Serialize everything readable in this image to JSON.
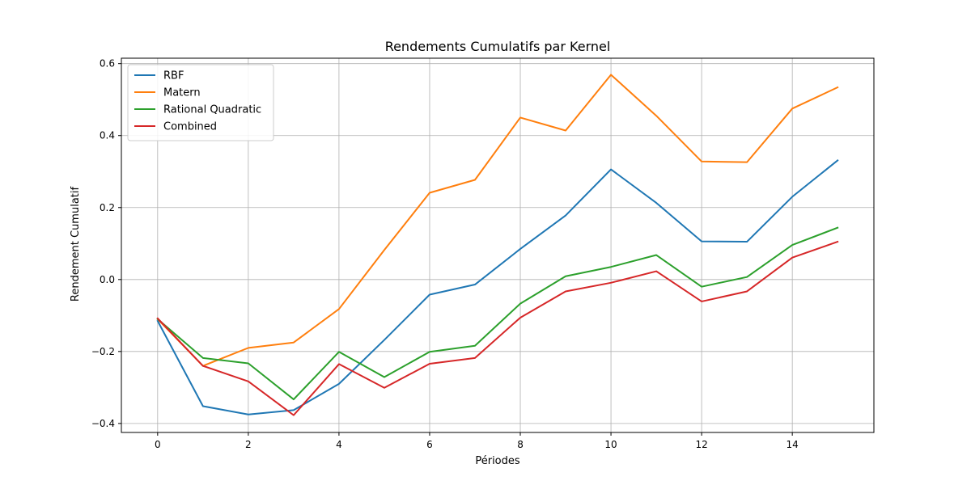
{
  "chart_data": {
    "type": "line",
    "title": "Rendements Cumulatifs par Kernel",
    "xlabel": "Périodes",
    "ylabel": "Rendement Cumulatif",
    "x": [
      0,
      1,
      2,
      3,
      4,
      5,
      6,
      7,
      8,
      9,
      10,
      11,
      12,
      13,
      14,
      15
    ],
    "xlim": [
      -0.8,
      15.8
    ],
    "ylim": [
      -0.425,
      0.615
    ],
    "xticks": [
      0,
      2,
      4,
      6,
      8,
      10,
      12,
      14
    ],
    "yticks": [
      -0.4,
      -0.2,
      0.0,
      0.2,
      0.4,
      0.6
    ],
    "ytick_labels": [
      "−0.4",
      "−0.2",
      "0.0",
      "0.2",
      "0.4",
      "0.6"
    ],
    "grid": true,
    "legend_position": "top-left",
    "series": [
      {
        "name": "RBF",
        "color": "#1f77b4",
        "values": [
          -0.115,
          -0.352,
          -0.375,
          -0.363,
          -0.29,
          -0.168,
          -0.042,
          -0.014,
          0.085,
          0.178,
          0.306,
          0.213,
          0.106,
          0.105,
          0.23,
          0.331
        ]
      },
      {
        "name": "Matern",
        "color": "#ff7f0e",
        "values": [
          -0.11,
          -0.24,
          -0.19,
          -0.175,
          -0.082,
          0.082,
          0.241,
          0.277,
          0.45,
          0.414,
          0.569,
          0.455,
          0.328,
          0.326,
          0.475,
          0.534
        ]
      },
      {
        "name": "Rational Quadratic",
        "color": "#2ca02c",
        "values": [
          -0.11,
          -0.218,
          -0.233,
          -0.333,
          -0.201,
          -0.271,
          -0.201,
          -0.184,
          -0.067,
          0.009,
          0.035,
          0.068,
          -0.02,
          0.007,
          0.096,
          0.144
        ]
      },
      {
        "name": "Combined",
        "color": "#d62728",
        "values": [
          -0.108,
          -0.24,
          -0.283,
          -0.377,
          -0.235,
          -0.301,
          -0.234,
          -0.218,
          -0.106,
          -0.033,
          -0.009,
          0.023,
          -0.061,
          -0.033,
          0.061,
          0.105
        ]
      }
    ]
  }
}
